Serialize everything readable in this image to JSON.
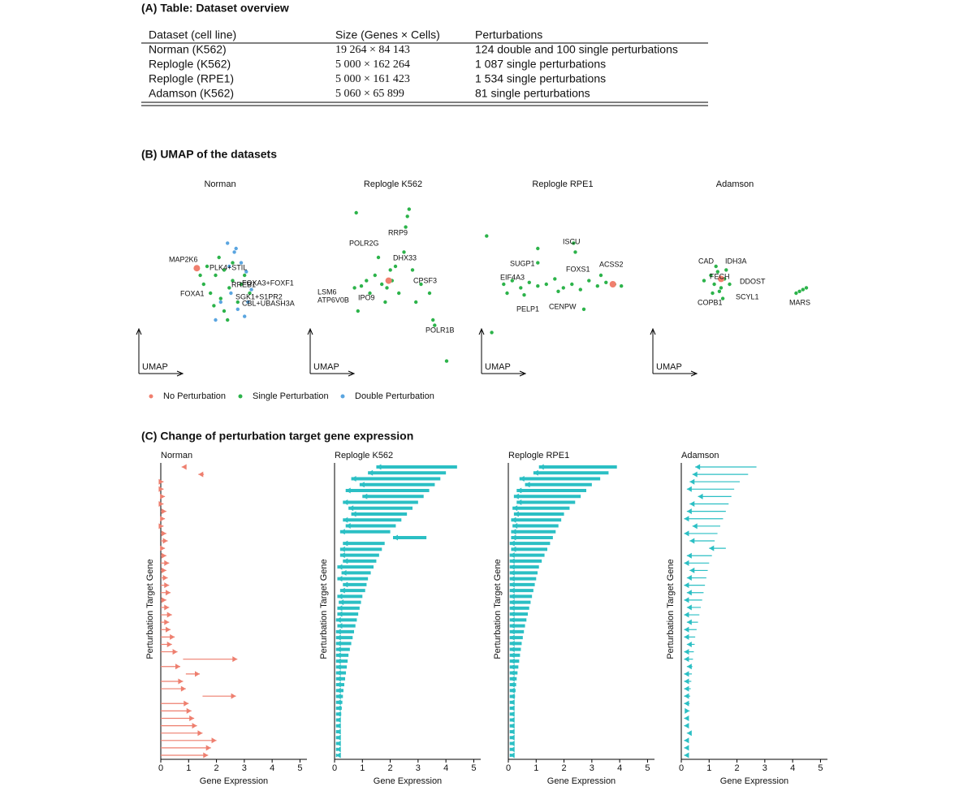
{
  "section_a": {
    "title": "(A) Table: Dataset overview",
    "table": {
      "header": [
        "Dataset (cell line)",
        "Size (Genes × Cells)",
        "Perturbations"
      ],
      "rows": [
        [
          "Norman (K562)",
          "19 264 × 84 143",
          "124 double and 100 single perturbations"
        ],
        [
          "Replogle (K562)",
          "5 000 × 162 264",
          "1 087 single perturbations"
        ],
        [
          "Replogle (RPE1)",
          "5 000 × 161 423",
          "1 534 single perturbations"
        ],
        [
          "Adamson (K562)",
          "5 060 × 65 899",
          "81 single perturbations"
        ]
      ]
    }
  },
  "section_b": {
    "title": "(B) UMAP of the datasets",
    "axis_label": "UMAP",
    "legend": [
      {
        "name": "No Perturbation",
        "color": "#f07f6e"
      },
      {
        "name": "Single Perturbation",
        "color": "#2cb34a"
      },
      {
        "name": "Double Perturbation",
        "color": "#5aa5e0"
      }
    ],
    "panels": [
      {
        "title": "Norman",
        "labels": [
          "MAP2K6",
          "PLK4+STIL",
          "FOXA1",
          "FOXA3+FOXF1",
          "RREB1",
          "SGK1+S1PR2",
          "CBL+UBASH3A"
        ],
        "series": [
          {
            "x": [
              34
            ],
            "y": [
              59
            ]
          },
          {
            "x": [
              40,
              45,
              50,
              55,
              60,
              42,
              48,
              53,
              58,
              38,
              44,
              62,
              65,
              50,
              47,
              55,
              36,
              52
            ],
            "y": [
              60,
              55,
              58,
              52,
              50,
              45,
              42,
              48,
              40,
              50,
              38,
              55,
              45,
              35,
              65,
              62,
              55,
              30
            ]
          },
          {
            "x": [
              52,
              56,
              60,
              63,
              66,
              48,
              58,
              62,
              45,
              54,
              57,
              64,
              53
            ],
            "y": [
              73,
              68,
              62,
              57,
              47,
              40,
              36,
              32,
              30,
              45,
              70,
              40,
              60
            ]
          }
        ]
      },
      {
        "title": "Replogle K562",
        "labels": [
          "RRP9",
          "POLR2G",
          "DHX33",
          "CPSF3",
          "LSM6",
          "ATP6V0B",
          "IPO9",
          "POLR1B"
        ],
        "series": [
          {
            "x": [
              46
            ],
            "y": [
              52
            ]
          },
          {
            "x": [
              42,
              38,
              45,
              48,
              35,
              30,
              26,
              50,
              55,
              60,
              65,
              70,
              72,
              56,
              57,
              58,
              40,
              44,
              28,
              73,
              80,
              27,
              52,
              47,
              33,
              62
            ],
            "y": [
              50,
              55,
              48,
              52,
              45,
              49,
              48,
              60,
              68,
              58,
              50,
              45,
              30,
              82,
              88,
              92,
              65,
              40,
              35,
              27,
              7,
              90,
              45,
              58,
              52,
              40
            ]
          },
          {
            "x": [],
            "y": []
          }
        ]
      },
      {
        "title": "Replogle RPE1",
        "labels": [
          "ISCU",
          "SUGP1",
          "FOXS1",
          "ACSS2",
          "EIF4A3",
          "PELP1",
          "CENPW"
        ],
        "series": [
          {
            "x": [
              77
            ],
            "y": [
              50
            ]
          },
          {
            "x": [
              13,
              18,
              23,
              28,
              33,
              38,
              43,
              48,
              53,
              58,
              63,
              68,
              73,
              78,
              82,
              33,
              33,
              54,
              55,
              3,
              6,
              60,
              25,
              45,
              70,
              15
            ],
            "y": [
              50,
              52,
              48,
              51,
              49,
              50,
              53,
              48,
              50,
              47,
              52,
              49,
              51,
              50,
              49,
              62,
              70,
              73,
              68,
              77,
              23,
              36,
              44,
              46,
              55,
              45
            ]
          },
          {
            "x": [],
            "y": []
          }
        ]
      },
      {
        "title": "Adamson",
        "labels": [
          "CAD",
          "IDH3A",
          "FECH",
          "DDOST",
          "COPB1",
          "SCYL1",
          "MARS"
        ],
        "series": [
          {
            "x": [
              40
            ],
            "y": [
              53
            ]
          },
          {
            "x": [
              34,
              36,
              38,
              40,
              42,
              35,
              39,
              43,
              37,
              41,
              45,
              30,
              86,
              88,
              84,
              90
            ],
            "y": [
              55,
              50,
              57,
              48,
              53,
              45,
              46,
              58,
              60,
              42,
              50,
              52,
              46,
              47,
              45,
              48
            ]
          },
          {
            "x": [],
            "y": []
          }
        ]
      }
    ]
  },
  "section_c": {
    "title": "(C) Change of perturbation target gene expression",
    "xlabel": "Gene Expression",
    "ylabel": "Perturbation Target Gene",
    "xlim": [
      0,
      5.25
    ],
    "xticks": [
      0,
      1,
      2,
      3,
      4,
      5
    ],
    "panels": [
      {
        "title": "Norman",
        "color": "#ee7f6f",
        "control": [
          0.9,
          1.55,
          0,
          0,
          0,
          0,
          0,
          0,
          0,
          0,
          0,
          0,
          0,
          0,
          0,
          0,
          0,
          0,
          0,
          0,
          0,
          0,
          0,
          0,
          0,
          0,
          0.8,
          0,
          0.9,
          0,
          0,
          1.5,
          0,
          0,
          0,
          0,
          0,
          0,
          0,
          0
        ],
        "perturbed": [
          0.75,
          1.35,
          0.1,
          0.1,
          0.15,
          0.1,
          0.2,
          0.15,
          0.1,
          0.2,
          0.25,
          0.15,
          0.2,
          0.3,
          0.2,
          0.25,
          0.3,
          0.35,
          0.2,
          0.3,
          0.4,
          0.3,
          0.35,
          0.5,
          0.4,
          0.6,
          2.75,
          0.7,
          1.4,
          0.8,
          0.9,
          2.7,
          1.0,
          1.1,
          1.2,
          1.3,
          1.5,
          2.0,
          1.8,
          1.7
        ]
      },
      {
        "title": "Replogle K562",
        "color": "#2bbfc4",
        "control": [
          4.4,
          4.0,
          3.8,
          3.6,
          3.4,
          3.2,
          3.0,
          2.8,
          2.6,
          2.4,
          2.2,
          2.0,
          3.3,
          1.8,
          1.7,
          1.6,
          1.5,
          1.4,
          1.3,
          1.2,
          1.15,
          1.1,
          1.0,
          0.95,
          0.9,
          0.85,
          0.8,
          0.75,
          0.7,
          0.65,
          0.6,
          0.55,
          0.5,
          0.47,
          0.44,
          0.41,
          0.38,
          0.35,
          0.32,
          0.3,
          0.28,
          0.26,
          0.24,
          0.22,
          0.2,
          0.18,
          0.16,
          0.14,
          0.12,
          0.1
        ],
        "perturbed": [
          1.5,
          1.2,
          0.6,
          0.9,
          0.4,
          1.0,
          0.3,
          0.5,
          0.6,
          0.3,
          0.4,
          0.2,
          2.1,
          0.3,
          0.2,
          0.2,
          0.3,
          0.1,
          0.25,
          0.1,
          0.3,
          0.2,
          0.1,
          0.15,
          0.1,
          0.1,
          0.05,
          0.1,
          0.05,
          0.05,
          0.05,
          0.05,
          0.05,
          0.05,
          0.05,
          0.05,
          0.05,
          0.05,
          0.05,
          0.05,
          0.05,
          0.05,
          0.05,
          0.05,
          0.05,
          0.05,
          0.05,
          0.05,
          0.05,
          0.05
        ]
      },
      {
        "title": "Replogle RPE1",
        "color": "#2bbfc4",
        "control": [
          3.9,
          3.6,
          3.3,
          3.0,
          2.8,
          2.6,
          2.4,
          2.2,
          2.0,
          1.9,
          1.8,
          1.7,
          1.6,
          1.5,
          1.4,
          1.3,
          1.2,
          1.1,
          1.05,
          1.0,
          0.95,
          0.9,
          0.85,
          0.8,
          0.75,
          0.7,
          0.65,
          0.6,
          0.56,
          0.52,
          0.48,
          0.45,
          0.42,
          0.39,
          0.36,
          0.33,
          0.3,
          0.28,
          0.26,
          0.24,
          0.22,
          0.2,
          0.19,
          0.18,
          0.17,
          0.16,
          0.15,
          0.14,
          0.13,
          0.12
        ],
        "perturbed": [
          1.1,
          0.9,
          0.4,
          0.6,
          0.3,
          0.2,
          0.3,
          0.15,
          0.2,
          0.1,
          0.15,
          0.1,
          0.1,
          0.05,
          0.1,
          0.05,
          0.05,
          0.05,
          0.05,
          0.05,
          0.05,
          0.05,
          0.05,
          0.05,
          0.05,
          0.05,
          0.05,
          0.05,
          0.05,
          0.05,
          0.05,
          0.05,
          0.05,
          0.05,
          0.05,
          0.05,
          0.05,
          0.05,
          0.05,
          0.05,
          0.05,
          0.05,
          0.05,
          0.05,
          0.05,
          0.05,
          0.05,
          0.05,
          0.05,
          0.05
        ]
      },
      {
        "title": "Adamson",
        "color": "#2bbfc4",
        "control": [
          2.7,
          2.4,
          2.1,
          1.9,
          1.8,
          1.7,
          1.6,
          1.5,
          1.4,
          1.3,
          1.2,
          1.6,
          1.1,
          1.0,
          0.95,
          0.9,
          0.85,
          0.8,
          0.75,
          0.7,
          0.65,
          0.6,
          0.55,
          0.5,
          0.48,
          0.45,
          0.42,
          0.4,
          0.38,
          0.36,
          0.34,
          0.32,
          0.3,
          0.28,
          0.26,
          0.24,
          0.22,
          0.2,
          0.18,
          0.16
        ],
        "perturbed": [
          0.5,
          0.4,
          0.3,
          0.2,
          0.6,
          0.3,
          0.2,
          0.1,
          0.4,
          0.1,
          0.3,
          1.0,
          0.2,
          0.1,
          0.3,
          0.2,
          0.1,
          0.2,
          0.1,
          0.2,
          0.1,
          0.2,
          0.1,
          0.1,
          0.2,
          0.1,
          0.1,
          0.2,
          0.1,
          0.1,
          0.1,
          0.1,
          0.1,
          0.3,
          0.1,
          0.1,
          0.2,
          0.1,
          0.1,
          0.1
        ]
      }
    ]
  }
}
